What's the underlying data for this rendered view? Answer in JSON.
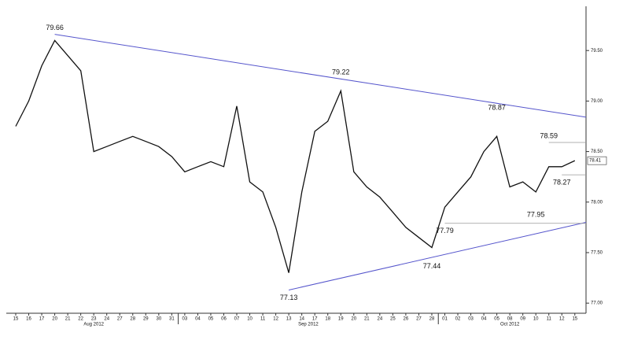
{
  "chart_data": {
    "type": "line",
    "color": "#111111",
    "categories": [
      "15",
      "16",
      "17",
      "20",
      "21",
      "22",
      "23",
      "24",
      "27",
      "28",
      "29",
      "30",
      "31",
      "03",
      "04",
      "05",
      "06",
      "07",
      "10",
      "11",
      "12",
      "13",
      "14",
      "17",
      "18",
      "19",
      "20",
      "21",
      "24",
      "25",
      "26",
      "27",
      "28",
      "01",
      "02",
      "03",
      "04",
      "05",
      "08",
      "09",
      "10",
      "11",
      "12",
      "15"
    ],
    "months": [
      "Aug 2012",
      "Sep 2012",
      "Oct 2012"
    ],
    "values": [
      78.75,
      79.0,
      79.35,
      79.6,
      79.45,
      79.3,
      78.5,
      78.55,
      78.6,
      78.65,
      78.6,
      78.55,
      78.45,
      78.3,
      78.35,
      78.4,
      78.35,
      78.95,
      78.2,
      78.1,
      77.75,
      77.3,
      78.1,
      78.7,
      78.8,
      79.1,
      78.3,
      78.15,
      78.05,
      77.9,
      77.75,
      77.65,
      77.55,
      77.95,
      78.1,
      78.25,
      78.5,
      78.65,
      78.15,
      78.2,
      78.1,
      78.35,
      78.35,
      78.41
    ],
    "pivots": [
      null,
      null,
      null,
      79.66,
      null,
      null,
      null,
      null,
      null,
      null,
      null,
      null,
      null,
      null,
      null,
      null,
      null,
      null,
      null,
      null,
      null,
      77.13,
      null,
      null,
      null,
      79.22,
      null,
      null,
      null,
      null,
      null,
      null,
      77.44,
      77.79,
      null,
      null,
      null,
      78.87,
      null,
      null,
      77.95,
      78.59,
      78.27,
      null
    ],
    "trendlines": [
      {
        "x": [
          3,
          43.86
        ],
        "y": [
          79.66,
          78.84
        ],
        "color": "#5555cc"
      },
      {
        "x": [
          21,
          43.86
        ],
        "y": [
          77.13,
          77.8
        ],
        "color": "#5555cc"
      }
    ],
    "levels": [
      {
        "value": 77.79,
        "from": 33
      },
      {
        "value": 78.59,
        "from": 41
      },
      {
        "value": 78.27,
        "from": 42
      }
    ],
    "last_price": 78.41,
    "ylim": [
      76.9,
      80.0
    ],
    "yticks": [
      {
        "value": 77.0,
        "label": "77.00"
      },
      {
        "value": 77.5,
        "label": "77.50"
      },
      {
        "value": 78.0,
        "label": "78.00"
      },
      {
        "value": 78.5,
        "label": "78.50"
      },
      {
        "value": 79.0,
        "label": "79.00"
      },
      {
        "value": 79.5,
        "label": "79.50"
      }
    ]
  }
}
